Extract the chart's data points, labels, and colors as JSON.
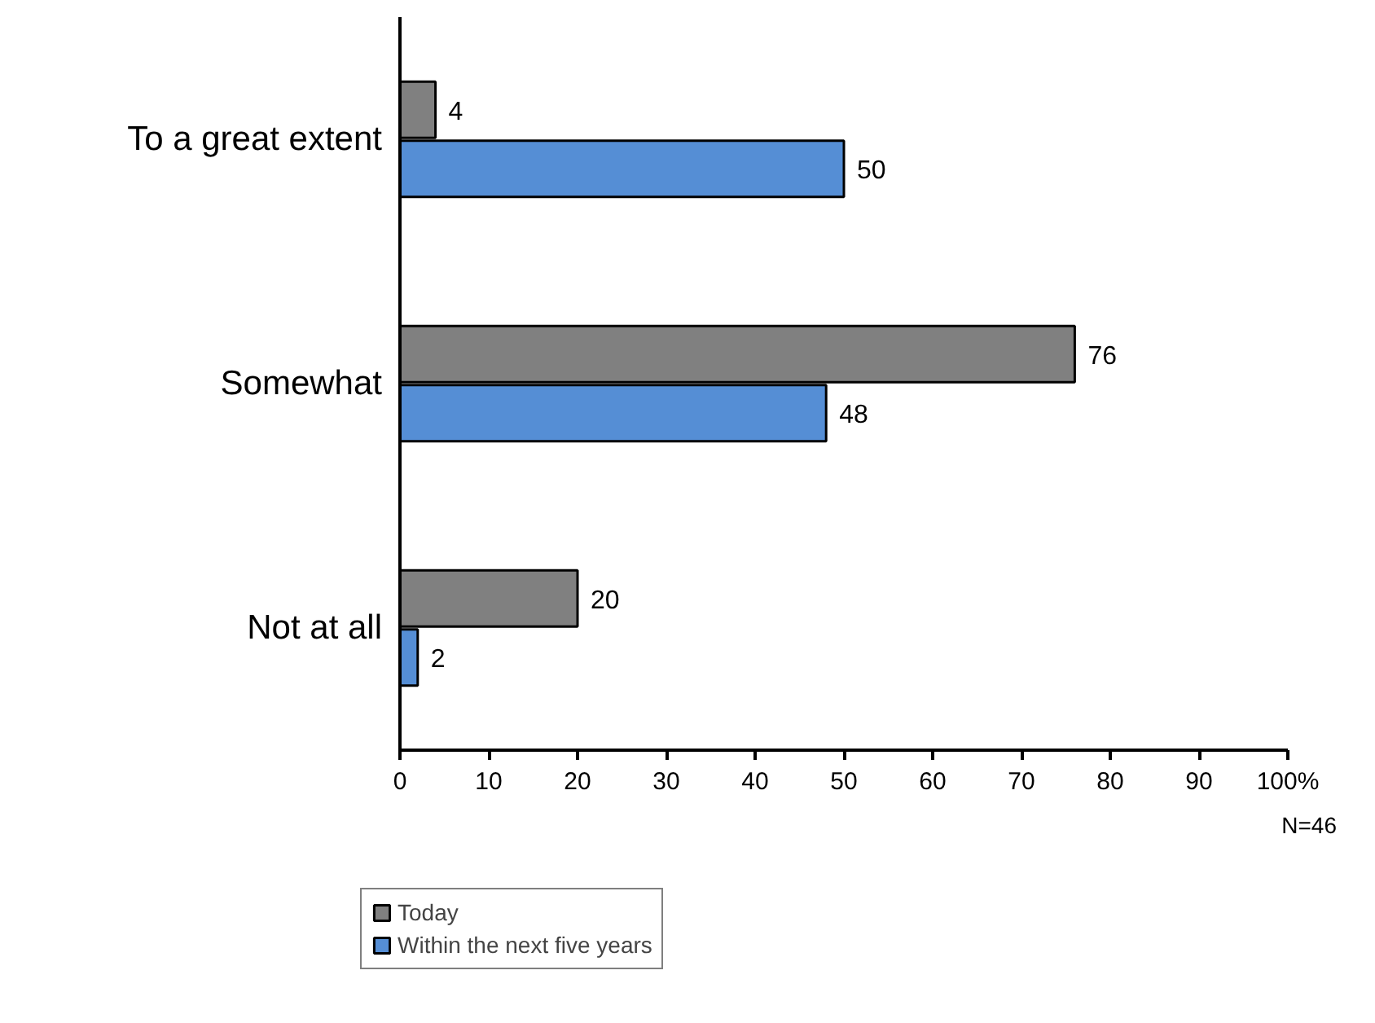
{
  "chart_data": {
    "type": "bar",
    "orientation": "horizontal",
    "categories": [
      "To a great extent",
      "Somewhat",
      "Not at all"
    ],
    "series": [
      {
        "name": "Today",
        "color": "#808080",
        "values": [
          4,
          76,
          20
        ]
      },
      {
        "name": "Within the next five years",
        "color": "#558ed5",
        "values": [
          50,
          48,
          2
        ]
      }
    ],
    "xlim": [
      0,
      100
    ],
    "xticks": [
      0,
      10,
      20,
      30,
      40,
      50,
      60,
      70,
      80,
      90,
      {
        "value": 100,
        "label": "100%"
      }
    ],
    "data_labels": true,
    "grid": false,
    "legend": "bottom left",
    "annotations": [
      "N=46"
    ]
  }
}
